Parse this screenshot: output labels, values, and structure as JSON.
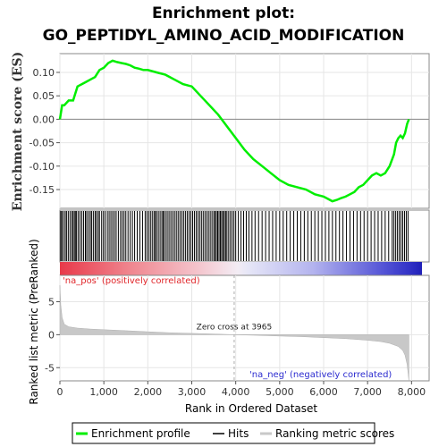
{
  "chart_data": {
    "type": "line",
    "title_line1": "Enrichment plot:",
    "title_line2": "GO_PEPTIDYL_AMINO_ACID_MODIFICATION",
    "xlabel": "Rank in Ordered Dataset",
    "ylabel_top": "Enrichment score (ES)",
    "ylabel_bottom": "Ranked list metric (PreRanked)",
    "xlim": [
      0,
      8400
    ],
    "es_ylim": [
      -0.19,
      0.14
    ],
    "metric_ylim": [
      -7,
      9
    ],
    "x_ticks": [
      0,
      1000,
      2000,
      3000,
      4000,
      5000,
      6000,
      7000,
      8000
    ],
    "x_tick_labels": [
      "0",
      "1,000",
      "2,000",
      "3,000",
      "4,000",
      "5,000",
      "6,000",
      "7,000",
      "8,000"
    ],
    "es_ticks": [
      0.1,
      0.05,
      0.0,
      -0.05,
      -0.1,
      -0.15
    ],
    "es_tick_labels": [
      "0.10",
      "0.05",
      "0.00",
      "-0.05",
      "-0.10",
      "-0.15"
    ],
    "metric_ticks": [
      5,
      0,
      -5
    ],
    "metric_tick_labels": [
      "5",
      "0",
      "-5"
    ],
    "series": [
      {
        "name": "Enrichment profile",
        "color": "#00ee00",
        "x": [
          0,
          50,
          100,
          200,
          300,
          400,
          500,
          600,
          700,
          800,
          900,
          1000,
          1100,
          1200,
          1300,
          1400,
          1500,
          1600,
          1700,
          1800,
          1900,
          2000,
          2200,
          2400,
          2600,
          2800,
          3000,
          3200,
          3400,
          3600,
          3800,
          4000,
          4200,
          4400,
          4600,
          4800,
          5000,
          5200,
          5400,
          5600,
          5800,
          6000,
          6100,
          6200,
          6300,
          6400,
          6500,
          6600,
          6700,
          6800,
          6900,
          7000,
          7100,
          7200,
          7300,
          7400,
          7500,
          7600,
          7650,
          7700,
          7750,
          7800,
          7850,
          7900,
          7940
        ],
        "y": [
          0.0,
          0.03,
          0.03,
          0.04,
          0.04,
          0.07,
          0.075,
          0.08,
          0.085,
          0.09,
          0.105,
          0.11,
          0.12,
          0.125,
          0.122,
          0.12,
          0.118,
          0.115,
          0.11,
          0.108,
          0.105,
          0.105,
          0.1,
          0.095,
          0.085,
          0.075,
          0.07,
          0.05,
          0.03,
          0.01,
          -0.015,
          -0.04,
          -0.065,
          -0.085,
          -0.1,
          -0.115,
          -0.13,
          -0.14,
          -0.145,
          -0.15,
          -0.16,
          -0.165,
          -0.17,
          -0.175,
          -0.172,
          -0.168,
          -0.165,
          -0.16,
          -0.155,
          -0.145,
          -0.14,
          -0.13,
          -0.12,
          -0.115,
          -0.12,
          -0.115,
          -0.1,
          -0.075,
          -0.05,
          -0.04,
          -0.035,
          -0.04,
          -0.03,
          -0.01,
          0.0
        ]
      },
      {
        "name": "Hits",
        "color": "#000000",
        "positions": [
          20,
          45,
          80,
          120,
          150,
          190,
          230,
          270,
          300,
          330,
          360,
          380,
          420,
          460,
          500,
          540,
          580,
          610,
          650,
          690,
          720,
          760,
          800,
          830,
          870,
          900,
          950,
          990,
          1030,
          1080,
          1120,
          1160,
          1200,
          1240,
          1280,
          1330,
          1380,
          1420,
          1460,
          1500,
          1550,
          1600,
          1650,
          1700,
          1760,
          1820,
          1880,
          1940,
          1980,
          2020,
          2060,
          2100,
          2140,
          2170,
          2200,
          2240,
          2280,
          2320,
          2350,
          2380,
          2420,
          2460,
          2500,
          2540,
          2580,
          2620,
          2660,
          2700,
          2740,
          2780,
          2820,
          2860,
          2900,
          2940,
          2980,
          3020,
          3060,
          3100,
          3140,
          3180,
          3220,
          3260,
          3300,
          3340,
          3380,
          3420,
          3460,
          3500,
          3530,
          3560,
          3590,
          3620,
          3650,
          3680,
          3710,
          3740,
          3770,
          3800,
          3840,
          3880,
          3920,
          3960,
          4000,
          4060,
          4120,
          4180,
          4240,
          4300,
          4370,
          4440,
          4520,
          4600,
          4680,
          4760,
          4840,
          4920,
          5000,
          5080,
          5160,
          5240,
          5320,
          5400,
          5480,
          5560,
          5640,
          5720,
          5800,
          5880,
          5960,
          6040,
          6120,
          6200,
          6280,
          6360,
          6440,
          6520,
          6600,
          6680,
          6760,
          6840,
          6920,
          7000,
          7080,
          7160,
          7240,
          7320,
          7400,
          7480,
          7560,
          7600,
          7640,
          7680,
          7720,
          7760,
          7800,
          7840,
          7880,
          7920
        ]
      },
      {
        "name": "Ranking metric scores",
        "color": "#c8c8c8",
        "x": [
          0,
          20,
          50,
          100,
          200,
          400,
          700,
          1000,
          1500,
          2000,
          2500,
          3000,
          3500,
          3965,
          4500,
          5000,
          5500,
          6000,
          6500,
          7000,
          7300,
          7500,
          7700,
          7800,
          7850,
          7900,
          7940
        ],
        "y": [
          7.5,
          4.5,
          2.6,
          1.6,
          1.2,
          1.0,
          0.85,
          0.75,
          0.6,
          0.45,
          0.3,
          0.2,
          0.1,
          0.0,
          -0.1,
          -0.2,
          -0.3,
          -0.45,
          -0.6,
          -0.85,
          -1.05,
          -1.3,
          -1.8,
          -2.4,
          -3.1,
          -4.5,
          -7.0
        ]
      }
    ],
    "annotations": {
      "pos_label": "'na_pos' (positively correlated)",
      "neg_label": "'na_neg' (negatively correlated)",
      "zero_cross_label": "Zero cross at 3965",
      "zero_cross_x": 3965
    },
    "legend": {
      "placement": "bottom",
      "items": [
        "Enrichment profile",
        "Hits",
        "Ranking metric scores"
      ]
    },
    "colors": {
      "es_line": "#00ee00",
      "hits": "#000000",
      "metric": "#c8c8c8",
      "pos": "#e0262a",
      "neg": "#2b2bcf"
    }
  }
}
